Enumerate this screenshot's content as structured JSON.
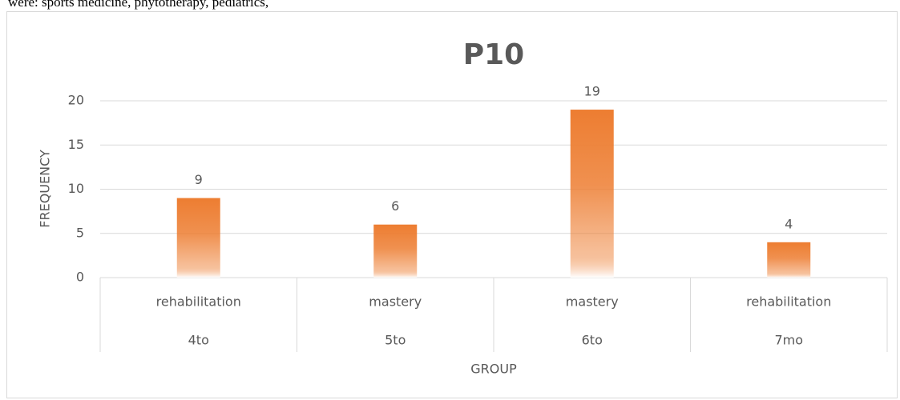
{
  "header_text": "were: sports medicine, phytotherapy, pediatrics,",
  "chart_data": {
    "type": "bar",
    "title": "P10",
    "categories": [
      "rehabilitation",
      "mastery",
      "mastery",
      "rehabilitation"
    ],
    "category_groups": [
      "4to",
      "5to",
      "6to",
      "7mo"
    ],
    "values": [
      9,
      6,
      19,
      4
    ],
    "color": "#ed7d31",
    "x_label": "GROUP",
    "y_label": "FREQUENCY",
    "ylim": [
      0,
      20
    ],
    "yticks": [
      0,
      5,
      10,
      15,
      20
    ],
    "grid": true
  }
}
